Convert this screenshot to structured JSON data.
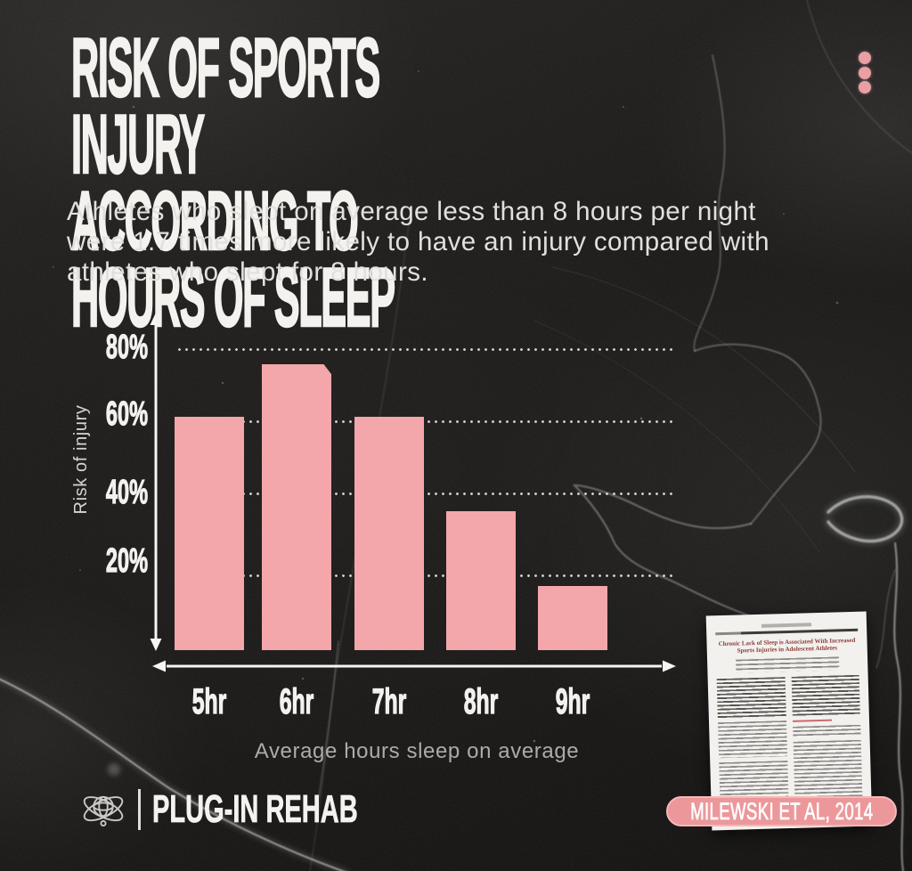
{
  "header": {
    "title": "RISK OF SPORTS INJURY\nACCORDING TO HOURS OF SLEEP",
    "subtitle": "Athletes who slept on average less than 8 hours per night\nwere 1.7 times more likely to have an injury compared with\nathletes who slept for 8 hours."
  },
  "menu": {
    "icon": "kebab-dots",
    "dot_color": "#e8a0a5"
  },
  "chart_data": {
    "type": "bar",
    "categories": [
      "5hr",
      "6hr",
      "7hr",
      "8hr",
      "9hr"
    ],
    "values": [
      62,
      76,
      62,
      37,
      17
    ],
    "unit": "%",
    "xlabel": "Average hours sleep on average",
    "ylabel": "Risk of injury",
    "yticks": [
      20,
      40,
      60,
      80
    ],
    "ytick_labels": [
      "20%",
      "40%",
      "60%",
      "80%"
    ],
    "ylim": [
      0,
      85
    ],
    "grid": "dotted-horizontal",
    "legend": "none",
    "axis_style": "double-headed-arrows",
    "bar_color": "#f4a7aa",
    "axis_color": "#f6f5f4"
  },
  "footer": {
    "logo_icon": "atom-icon",
    "logo_text": "PLUG-IN REHAB",
    "citation_badge": "MILEWSKI ET AL, 2014",
    "badge_bg": "#ec989b",
    "badge_border": "#f4b9ba"
  },
  "paper_thumbnail": {
    "title": "Chronic Lack of Sleep is Associated With Increased Sports Injuries in Adolescent Athletes"
  },
  "colors": {
    "background": "#1d1b1a",
    "title_text": "#f4f2ef",
    "body_text": "#e2e0dd",
    "muted_text": "#adabaa",
    "accent_pink": "#f4a7aa"
  }
}
